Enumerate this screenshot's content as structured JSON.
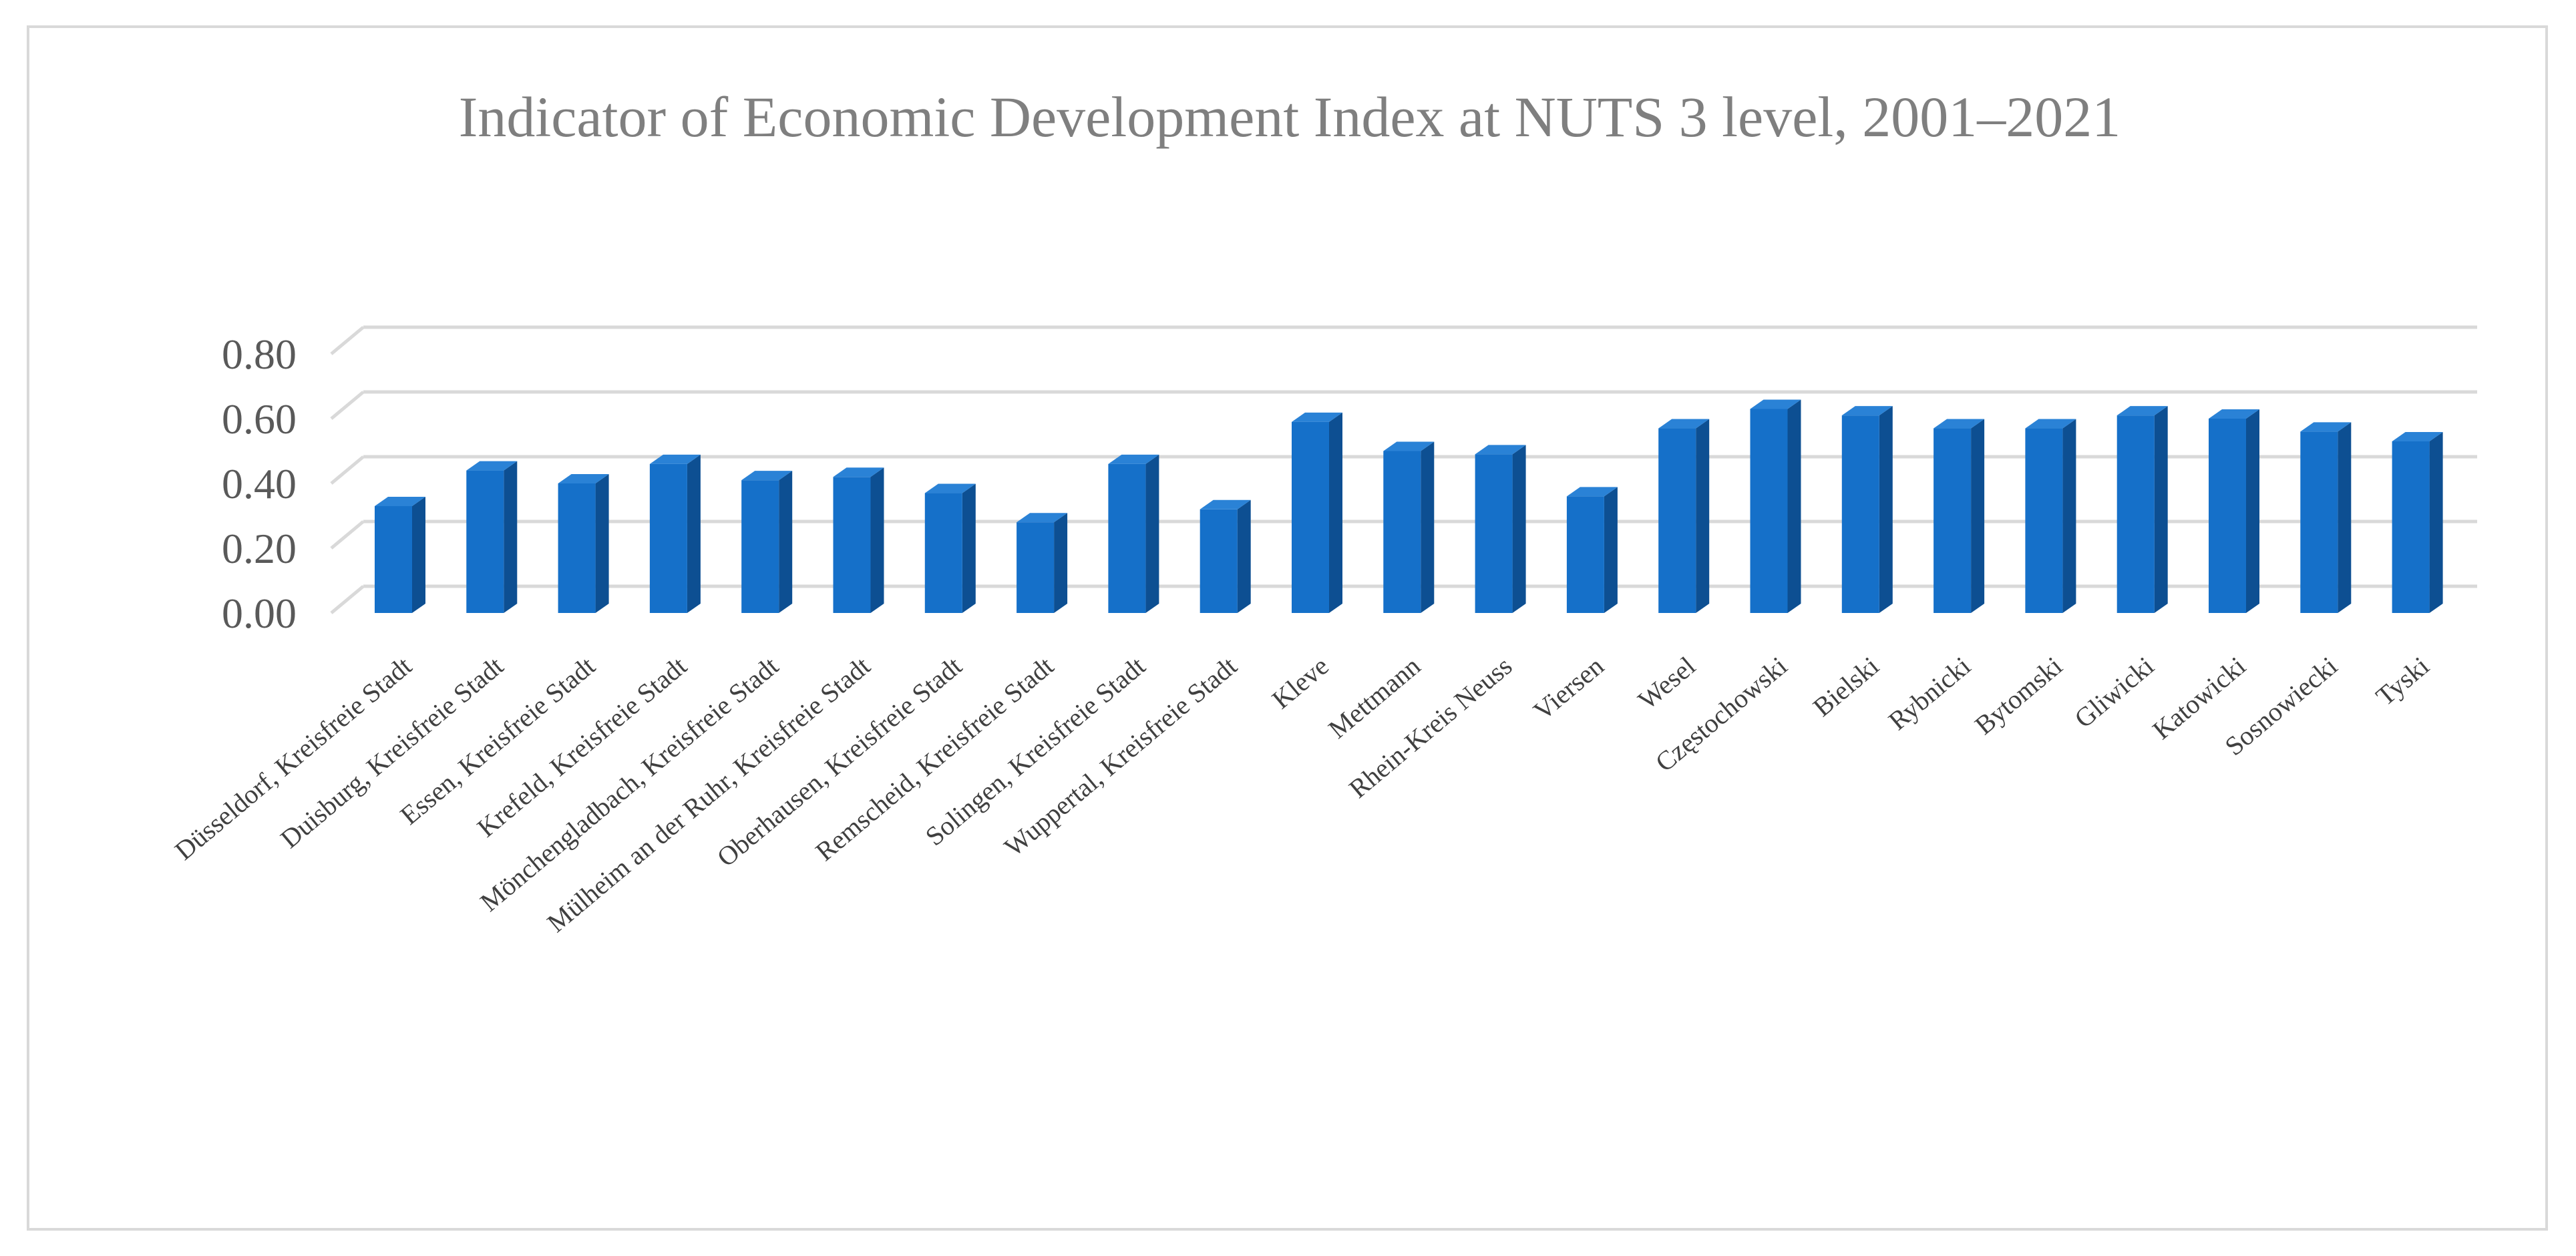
{
  "chart_data": {
    "type": "bar",
    "title": "Indicator of Economic Development Index at NUTS 3 level, 2001–2021",
    "xlabel": "",
    "ylabel": "",
    "ylim": [
      0,
      0.8
    ],
    "yticks": [
      "0.00",
      "0.20",
      "0.40",
      "0.60",
      "0.80"
    ],
    "grid": true,
    "legend": "none",
    "bar_color": "#1570c9",
    "categories": [
      "Düsseldorf, Kreisfreie Stadt",
      "Duisburg, Kreisfreie Stadt",
      "Essen, Kreisfreie Stadt",
      "Krefeld, Kreisfreie Stadt",
      "Mönchengladbach, Kreisfreie Stadt",
      "Mülheim an der Ruhr, Kreisfreie Stadt",
      "Oberhausen, Kreisfreie Stadt",
      "Remscheid, Kreisfreie Stadt",
      "Solingen, Kreisfreie Stadt",
      "Wuppertal, Kreisfreie Stadt",
      "Kleve",
      "Mettmann",
      "Rhein-Kreis Neuss",
      "Viersen",
      "Wesel",
      "Częstochowski",
      "Bielski",
      "Rybnicki",
      "Bytomski",
      "Gliwicki",
      "Katowicki",
      "Sosnowiecki",
      "Tyski"
    ],
    "values": [
      0.33,
      0.44,
      0.4,
      0.46,
      0.41,
      0.42,
      0.37,
      0.28,
      0.46,
      0.32,
      0.59,
      0.5,
      0.49,
      0.36,
      0.57,
      0.63,
      0.61,
      0.57,
      0.57,
      0.61,
      0.6,
      0.56,
      0.53
    ]
  }
}
